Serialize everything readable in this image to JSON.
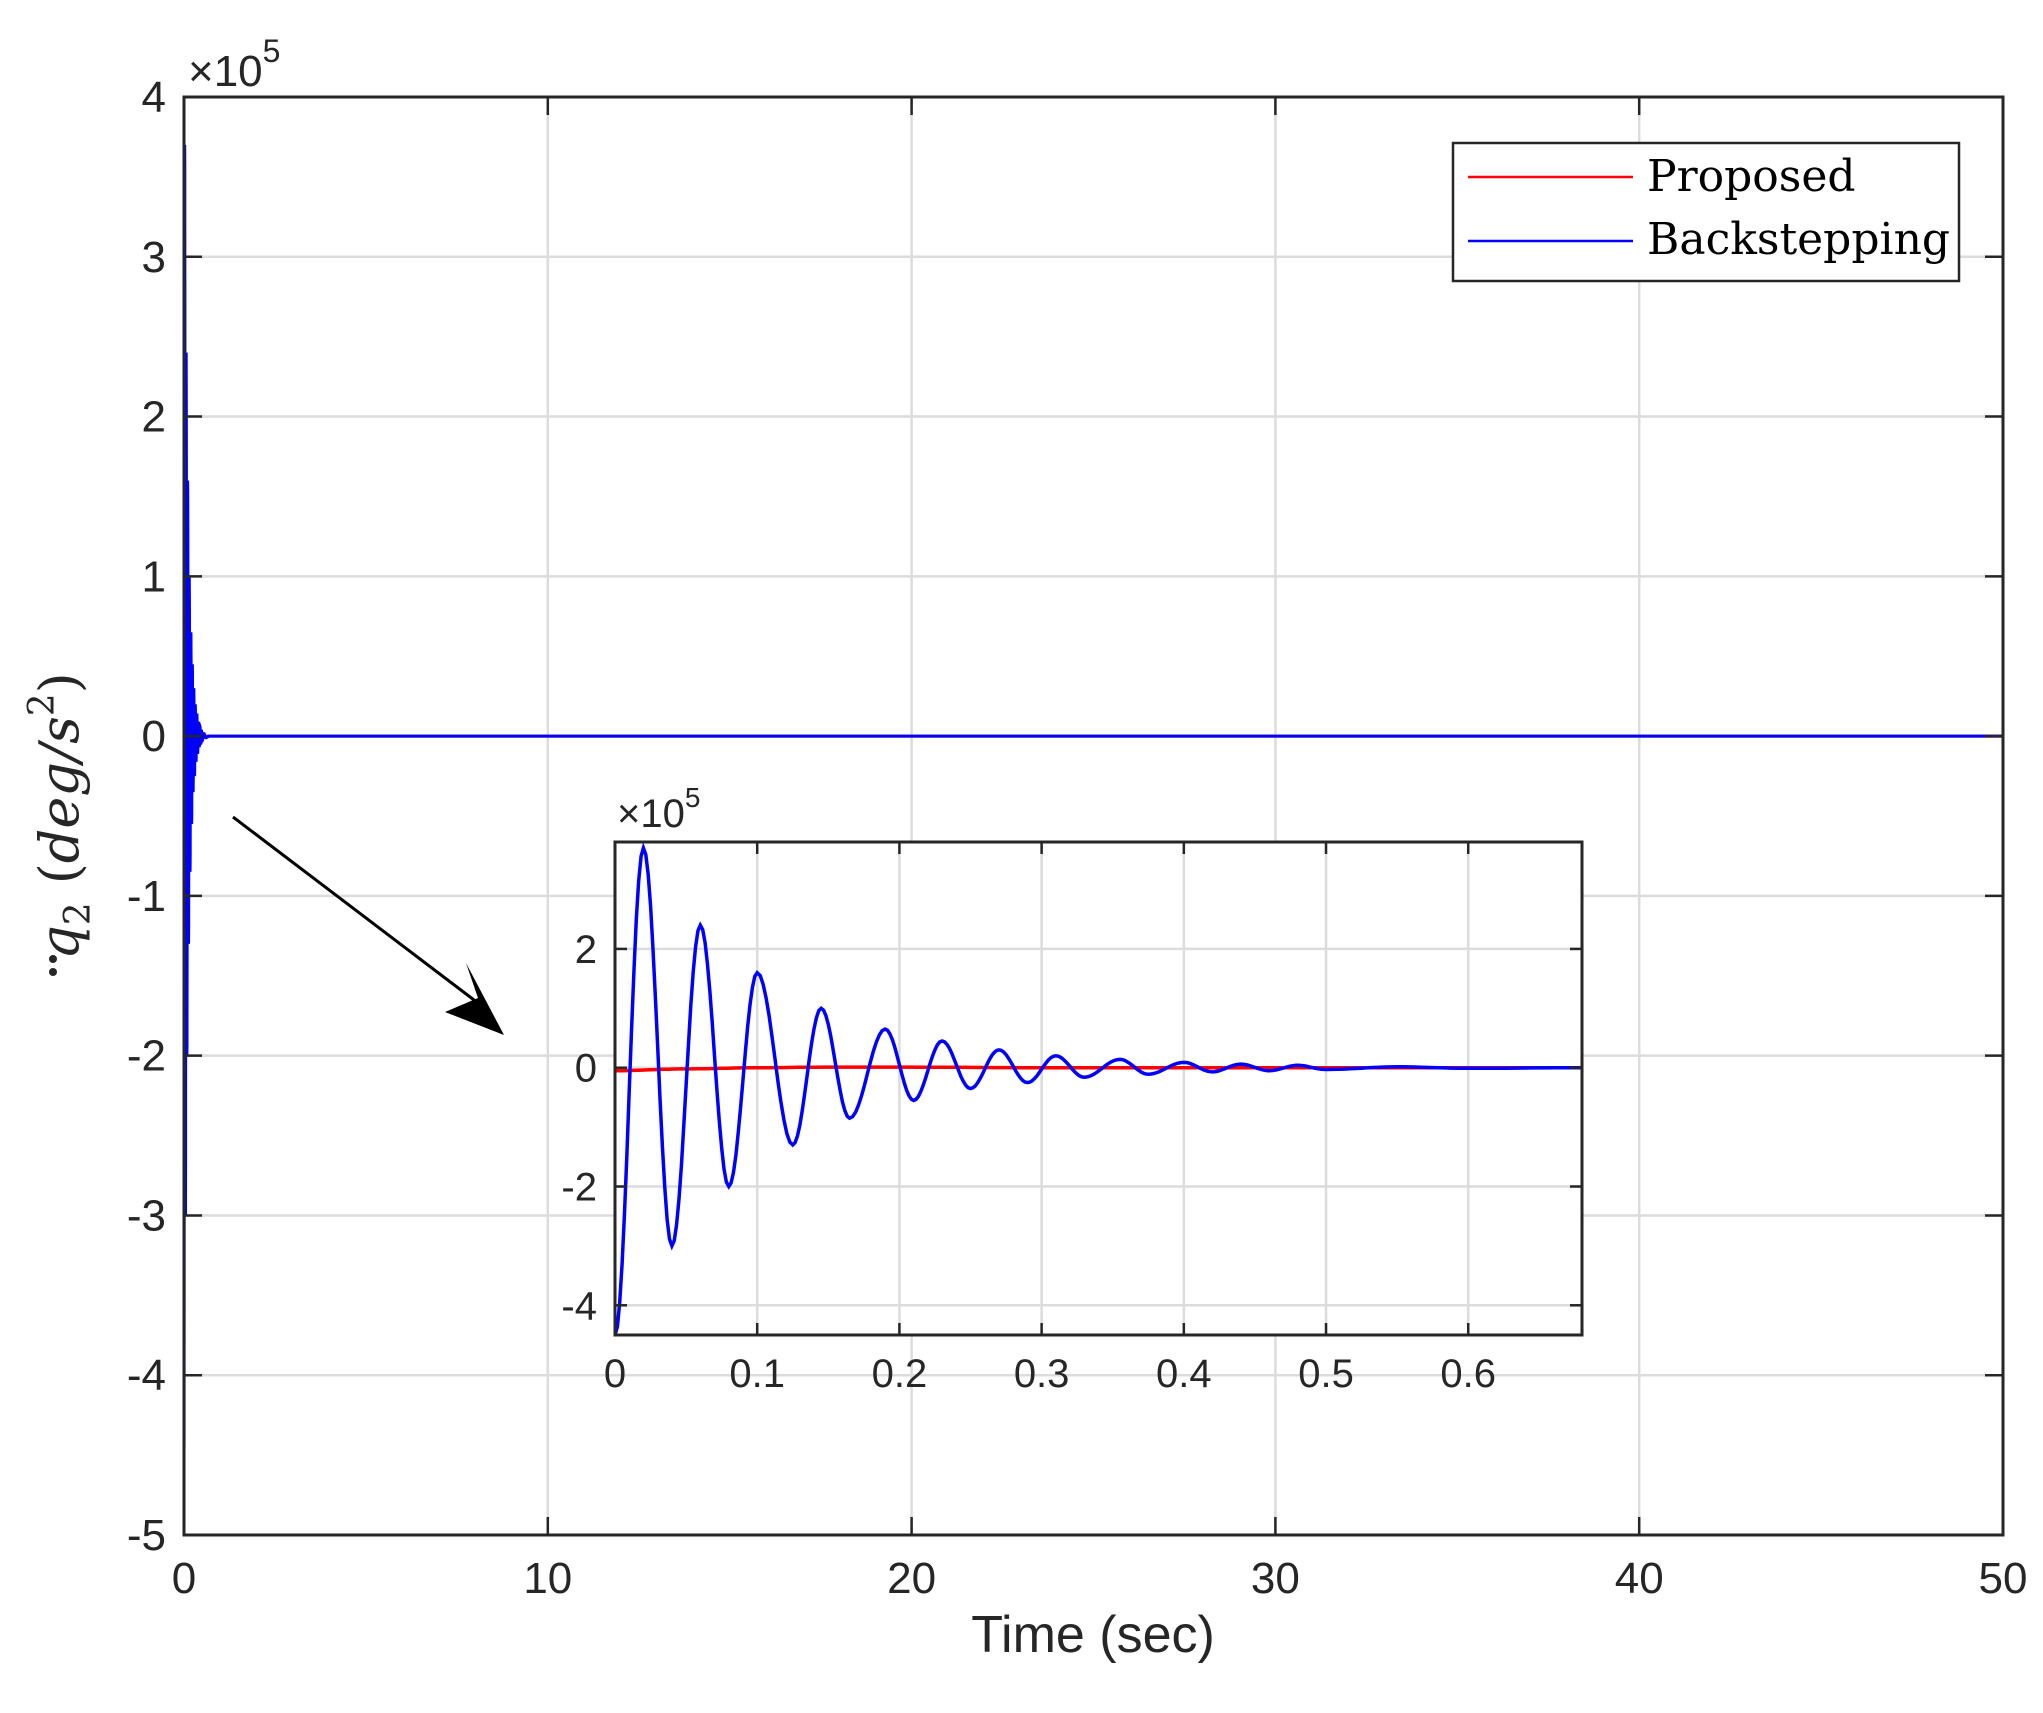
{
  "chart_data": [
    {
      "type": "line",
      "role": "main",
      "xlim": [
        0,
        50
      ],
      "ylim": [
        -5,
        4
      ],
      "x_ticks": [
        0,
        10,
        20,
        30,
        40,
        50
      ],
      "x_tick_labels": [
        "0",
        "10",
        "20",
        "30",
        "40",
        "50"
      ],
      "y_ticks": [
        4,
        3,
        2,
        1,
        0,
        -1,
        -2,
        -3,
        -4,
        -5
      ],
      "y_tick_labels": [
        "4",
        "3",
        "2",
        "1",
        "0",
        "-1",
        "-2",
        "-3",
        "-4",
        "-5"
      ],
      "y_exponent": {
        "base": "×10",
        "power": "5"
      },
      "xlabel": "Time (sec)",
      "ylabel": {
        "symbol": "q",
        "subscript": "2",
        "unit_open": "(",
        "unit": "deg/s",
        "unit_power": "2",
        "unit_close": ")"
      },
      "grid": true,
      "legend": {
        "placement": "top-right"
      },
      "series": [
        {
          "name": "Proposed",
          "color": "#ff0000",
          "x": [
            0,
            0.1,
            0.2,
            0.3,
            0.5,
            1,
            50
          ],
          "y": [
            -0.05,
            -0.02,
            0.0,
            0.01,
            0.0,
            0.0,
            0.0
          ]
        },
        {
          "name": "Backstepping",
          "color": "#0000ff",
          "x": [
            0,
            0.02,
            0.04,
            0.06,
            0.08,
            0.1,
            0.125,
            0.145,
            0.165,
            0.19,
            0.21,
            0.23,
            0.25,
            0.27,
            0.29,
            0.31,
            0.33,
            0.355,
            0.375,
            0.4,
            0.42,
            0.44,
            0.46,
            0.48,
            0.5,
            0.55,
            0.6,
            0.7,
            1,
            50
          ],
          "y": [
            -4.5,
            3.7,
            -3.0,
            2.4,
            -2.0,
            1.6,
            -1.3,
            1.0,
            -0.85,
            0.65,
            -0.55,
            0.45,
            -0.35,
            0.3,
            -0.25,
            0.2,
            -0.16,
            0.14,
            -0.11,
            0.09,
            -0.07,
            0.06,
            -0.05,
            0.04,
            -0.03,
            0.015,
            -0.01,
            0.0,
            0.0,
            0.0
          ]
        }
      ]
    },
    {
      "type": "line",
      "role": "inset",
      "xlim": [
        0,
        0.68
      ],
      "ylim": [
        -4.5,
        3.8
      ],
      "x_ticks": [
        0,
        0.1,
        0.2,
        0.3,
        0.4,
        0.5,
        0.6
      ],
      "x_tick_labels": [
        "0",
        "0.1",
        "0.2",
        "0.3",
        "0.4",
        "0.5",
        "0.6"
      ],
      "y_ticks": [
        2,
        0,
        -2,
        -4
      ],
      "y_tick_labels": [
        "2",
        "0",
        "-2",
        "-4"
      ],
      "y_exponent": {
        "base": "×10",
        "power": "5"
      },
      "grid": true,
      "series": [
        {
          "name": "Proposed",
          "color": "#ff0000",
          "x": [
            0,
            0.05,
            0.1,
            0.15,
            0.2,
            0.3,
            0.4,
            0.5,
            0.6,
            0.68
          ],
          "y": [
            -0.05,
            -0.02,
            0.0,
            0.01,
            0.01,
            0.0,
            0.0,
            0.0,
            0.0,
            0.0
          ]
        },
        {
          "name": "Backstepping",
          "color": "#0000ff",
          "x": [
            0,
            0.02,
            0.04,
            0.06,
            0.08,
            0.1,
            0.125,
            0.145,
            0.165,
            0.19,
            0.21,
            0.23,
            0.25,
            0.27,
            0.29,
            0.31,
            0.33,
            0.355,
            0.375,
            0.4,
            0.42,
            0.44,
            0.46,
            0.48,
            0.5,
            0.55,
            0.6,
            0.68
          ],
          "y": [
            -4.5,
            3.7,
            -3.0,
            2.4,
            -2.0,
            1.6,
            -1.3,
            1.0,
            -0.85,
            0.65,
            -0.55,
            0.45,
            -0.35,
            0.3,
            -0.25,
            0.2,
            -0.16,
            0.14,
            -0.11,
            0.09,
            -0.07,
            0.06,
            -0.05,
            0.04,
            -0.03,
            0.015,
            -0.01,
            0.0
          ]
        }
      ]
    }
  ],
  "colors": {
    "proposed": "#ff0000",
    "backstepping": "#0000ff",
    "grid": "#dcdcdc",
    "axis": "#262626",
    "arrow": "#000000"
  }
}
